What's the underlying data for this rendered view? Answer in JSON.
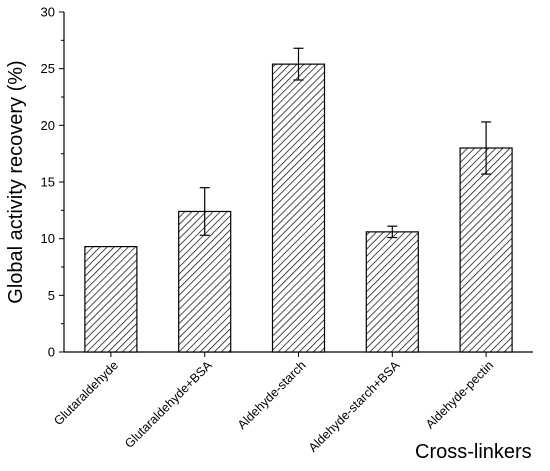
{
  "chart_data": {
    "type": "bar",
    "categories": [
      "Glutaraldehyde",
      "Glutaraldehyde+BSA",
      "Aldehyde-starch",
      "Aldehyde-starch+BSA",
      "Aldehyde-pectin"
    ],
    "series": [
      {
        "values": [
          9.3,
          12.4,
          25.4,
          10.6,
          18.0
        ],
        "errors": [
          0.0,
          2.1,
          1.4,
          0.5,
          2.3
        ]
      }
    ],
    "ylim": [
      0,
      30
    ],
    "yticks": [
      0,
      5,
      10,
      15,
      20,
      25,
      30
    ],
    "xlabel": "Cross-linkers",
    "ylabel": "Global activity recovery (%)",
    "grid": false,
    "legend": "none",
    "bar_pattern": "diagonal-hatch"
  }
}
